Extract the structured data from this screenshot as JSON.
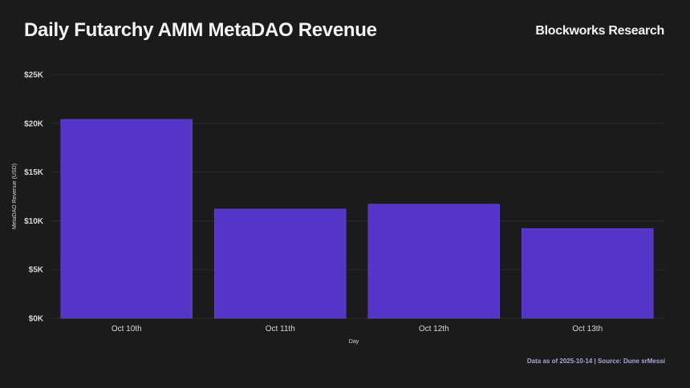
{
  "header": {
    "title": "Daily Futarchy AMM MetaDAO Revenue",
    "brand": "Blockworks Research"
  },
  "footer": {
    "note": "Data as of 2025-10-14 | Source: Dune srMessi"
  },
  "chart_data": {
    "type": "bar",
    "title": "Daily Futarchy AMM MetaDAO Revenue",
    "xlabel": "Day",
    "ylabel": "MetaDAO Revenue (USD)",
    "categories": [
      "Oct 10th",
      "Oct 11th",
      "Oct 12th",
      "Oct 13th"
    ],
    "values": [
      20400,
      11200,
      11700,
      9200
    ],
    "ylim": [
      0,
      25000
    ],
    "yticks": [
      0,
      5000,
      10000,
      15000,
      20000,
      25000
    ],
    "ytick_labels": [
      "$0K",
      "$5K",
      "$10K",
      "$15K",
      "$20K",
      "$25K"
    ],
    "grid": true,
    "bar_color": "#5534c9"
  }
}
